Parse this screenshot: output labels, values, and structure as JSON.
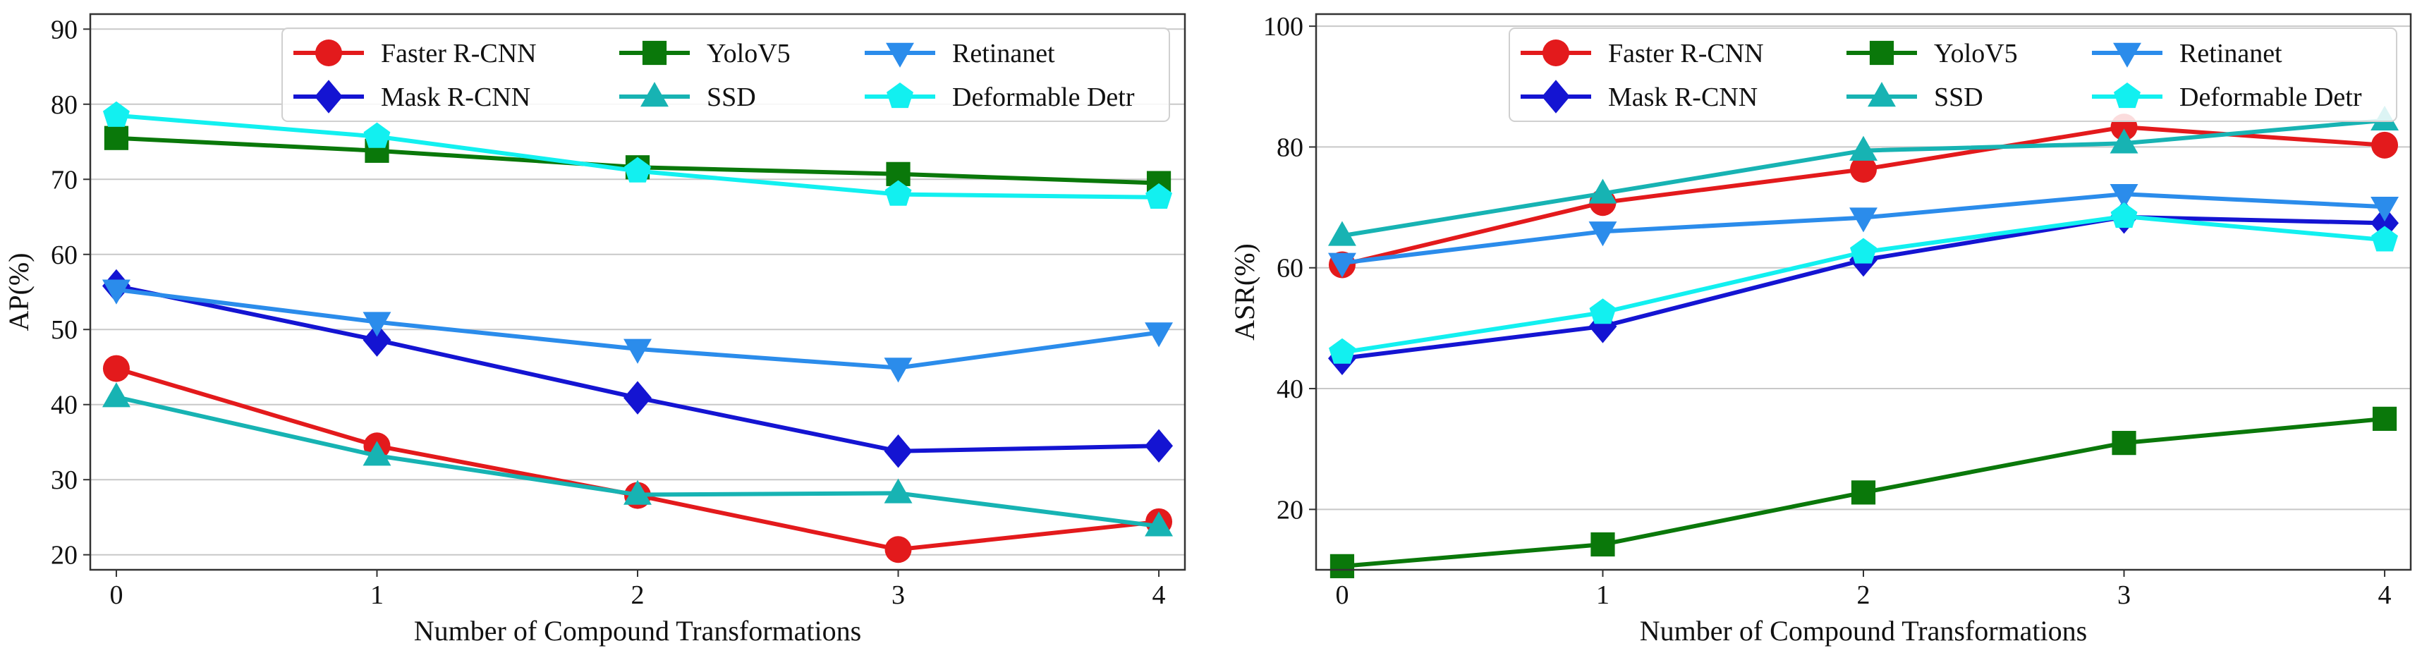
{
  "chart_data": [
    {
      "type": "line",
      "xlabel": "Number of Compound Transformations",
      "ylabel": "AP(%)",
      "xlim": [
        -0.1,
        4.1
      ],
      "ylim": [
        18,
        92
      ],
      "x": [
        0,
        1,
        2,
        3,
        4
      ],
      "xticks": [
        0,
        1,
        2,
        3,
        4
      ],
      "yticks": [
        20,
        30,
        40,
        50,
        60,
        70,
        80,
        90
      ],
      "grid": "horizontal",
      "legend": "top-right",
      "series": [
        {
          "name": "Faster R-CNN",
          "values": [
            44.8,
            34.5,
            27.9,
            20.7,
            24.4
          ],
          "color": "#e31a1c",
          "marker": "circle"
        },
        {
          "name": "Mask R-CNN",
          "values": [
            55.8,
            48.6,
            40.9,
            33.8,
            34.5
          ],
          "color": "#1414d2",
          "marker": "diamond"
        },
        {
          "name": "YoloV5",
          "values": [
            75.5,
            73.8,
            71.6,
            70.7,
            69.5
          ],
          "color": "#0a780a",
          "marker": "square"
        },
        {
          "name": "SSD",
          "values": [
            41.0,
            33.2,
            28.0,
            28.2,
            23.8
          ],
          "color": "#17b3b3",
          "marker": "triangle-up"
        },
        {
          "name": "Retinanet",
          "values": [
            55.3,
            51.0,
            47.4,
            44.9,
            49.6
          ],
          "color": "#2b8ceb",
          "marker": "triangle-down"
        },
        {
          "name": "Deformable Detr",
          "values": [
            78.5,
            75.7,
            71.1,
            68.0,
            67.6
          ],
          "color": "#12f0f0",
          "marker": "pentagon"
        }
      ]
    },
    {
      "type": "line",
      "xlabel": "Number of Compound Transformations",
      "ylabel": "ASR(%)",
      "xlim": [
        -0.1,
        4.1
      ],
      "ylim": [
        10,
        102
      ],
      "x": [
        0,
        1,
        2,
        3,
        4
      ],
      "xticks": [
        0,
        1,
        2,
        3,
        4
      ],
      "yticks": [
        20,
        40,
        60,
        80,
        100
      ],
      "grid": "horizontal",
      "legend": "top-right",
      "series": [
        {
          "name": "Faster R-CNN",
          "values": [
            60.5,
            70.8,
            76.3,
            83.3,
            80.3
          ],
          "color": "#e31a1c",
          "marker": "circle"
        },
        {
          "name": "Mask R-CNN",
          "values": [
            45.0,
            50.3,
            61.3,
            68.4,
            67.4
          ],
          "color": "#1414d2",
          "marker": "diamond"
        },
        {
          "name": "YoloV5",
          "values": [
            10.6,
            14.2,
            22.8,
            31.0,
            35.0
          ],
          "color": "#0a780a",
          "marker": "square"
        },
        {
          "name": "SSD",
          "values": [
            65.3,
            72.3,
            79.4,
            80.6,
            84.4
          ],
          "color": "#17b3b3",
          "marker": "triangle-up"
        },
        {
          "name": "Retinanet",
          "values": [
            60.8,
            66.0,
            68.3,
            72.2,
            70.1
          ],
          "color": "#2b8ceb",
          "marker": "triangle-down"
        },
        {
          "name": "Deformable Detr",
          "values": [
            46.0,
            52.6,
            62.6,
            68.5,
            64.6
          ],
          "color": "#12f0f0",
          "marker": "pentagon"
        }
      ]
    }
  ]
}
